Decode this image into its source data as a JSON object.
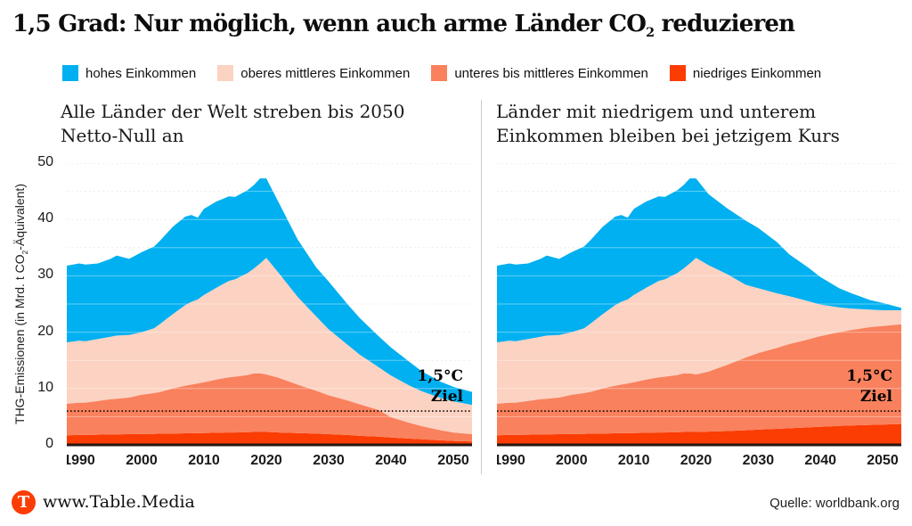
{
  "header": {
    "title_pre": "1,5 Grad: Nur möglich, wenn auch arme Länder CO",
    "title_sub": "2",
    "title_post": " reduzieren"
  },
  "legend": {
    "items": [
      {
        "label": "hohes Einkommen",
        "color": "#00b0f0"
      },
      {
        "label": "oberes mittleres Einkommen",
        "color": "#fcd2c2"
      },
      {
        "label": "unteres bis mittleres Einkommen",
        "color": "#f9815d"
      },
      {
        "label": "niedriges Einkommen",
        "color": "#fb3c03"
      }
    ]
  },
  "y_axis": {
    "label_pre": "THG-Emissionen (in Mrd. t CO",
    "label_sub": "2",
    "label_post": "-Äquivalent)",
    "ticks": [
      0,
      10,
      20,
      30,
      40,
      50
    ]
  },
  "footer": {
    "logo_letter": "T",
    "logo_color": "#fb3c03",
    "site": "www.Table.Media",
    "source": "Quelle: worldbank.org"
  },
  "chart_data": [
    {
      "panel": "left",
      "type": "area",
      "stacked": true,
      "title_line1": "Alle Länder der Welt streben bis 2050",
      "title_line2": "Netto-Null an",
      "ylabel": "THG-Emissionen (in Mrd. t CO₂-Äquivalent)",
      "ylim": [
        0,
        50
      ],
      "grid_step": 5,
      "x_range": [
        1988,
        2053
      ],
      "xticks": [
        1990,
        2000,
        2010,
        2020,
        2030,
        2040,
        2050
      ],
      "target_line": {
        "value": 6,
        "label_line1": "1,5°C",
        "label_line2": "Ziel"
      },
      "x": [
        1988,
        1990,
        1991,
        1993,
        1995,
        1996,
        1998,
        2000,
        2002,
        2003,
        2005,
        2007,
        2008,
        2009,
        2010,
        2012,
        2014,
        2015,
        2017,
        2018,
        2019,
        2020,
        2022,
        2025,
        2028,
        2030,
        2033,
        2035,
        2038,
        2040,
        2043,
        2045,
        2048,
        2050,
        2053
      ],
      "series": [
        {
          "name": "niedriges Einkommen",
          "color": "#fb3c03",
          "values": [
            1.7,
            1.75,
            1.75,
            1.8,
            1.85,
            1.85,
            1.9,
            1.95,
            1.95,
            2,
            2,
            2.05,
            2.1,
            2.1,
            2.1,
            2.15,
            2.2,
            2.2,
            2.25,
            2.3,
            2.3,
            2.3,
            2.2,
            2.1,
            2,
            1.9,
            1.75,
            1.6,
            1.45,
            1.3,
            1.1,
            1,
            0.8,
            0.7,
            0.6
          ]
        },
        {
          "name": "unteres bis mittleres Einkommen",
          "color": "#f9815d",
          "values": [
            5.6,
            5.75,
            5.75,
            6,
            6.25,
            6.35,
            6.5,
            6.95,
            7.25,
            7.4,
            8,
            8.45,
            8.6,
            8.8,
            9,
            9.45,
            9.8,
            9.9,
            10.15,
            10.4,
            10.4,
            10.2,
            9.7,
            8.6,
            7.6,
            6.9,
            6.15,
            5.6,
            4.75,
            3.6,
            2.8,
            2.3,
            1.8,
            1.5,
            1.3
          ]
        },
        {
          "name": "oberes mittleres Einkommen",
          "color": "#fcd2c2",
          "values": [
            10.9,
            11,
            10.9,
            11,
            11.1,
            11.2,
            11.1,
            11.1,
            11.5,
            12.1,
            13.2,
            14.3,
            14.7,
            14.9,
            15.5,
            16.3,
            17.1,
            17.3,
            18.1,
            18.6,
            19.5,
            20.7,
            18.6,
            15.6,
            13.2,
            11.7,
            9.9,
            8.8,
            7.6,
            7.4,
            6.6,
            6.2,
            5.7,
            5.5,
            5.2
          ]
        },
        {
          "name": "hohes Einkommen",
          "color": "#00b0f0",
          "values": [
            13.6,
            13.7,
            13.6,
            13.4,
            13.8,
            14.2,
            13.5,
            14.2,
            14.5,
            14.8,
            15.5,
            15.7,
            15.4,
            14.5,
            15.3,
            15.3,
            15,
            14.6,
            14.7,
            14.8,
            15.1,
            14.1,
            12.5,
            10.2,
            8.7,
            8.5,
            7.2,
            6.5,
            5.5,
            5,
            4.2,
            3.5,
            2.9,
            2.6,
            2.3
          ]
        }
      ]
    },
    {
      "panel": "right",
      "type": "area",
      "stacked": true,
      "title_line1": "Länder mit niedrigem und unterem",
      "title_line2": "Einkommen bleiben bei jetzigem Kurs",
      "ylabel": "THG-Emissionen (in Mrd. t CO₂-Äquivalent)",
      "ylim": [
        0,
        50
      ],
      "grid_step": 5,
      "x_range": [
        1988,
        2053
      ],
      "xticks": [
        1990,
        2000,
        2010,
        2020,
        2030,
        2040,
        2050
      ],
      "target_line": {
        "value": 6,
        "label_line1": "1,5°C",
        "label_line2": "Ziel"
      },
      "x": [
        1988,
        1990,
        1991,
        1993,
        1995,
        1996,
        1998,
        2000,
        2002,
        2003,
        2005,
        2007,
        2008,
        2009,
        2010,
        2012,
        2014,
        2015,
        2017,
        2018,
        2019,
        2020,
        2022,
        2025,
        2028,
        2030,
        2033,
        2035,
        2038,
        2040,
        2043,
        2045,
        2048,
        2050,
        2053
      ],
      "series": [
        {
          "name": "niedriges Einkommen",
          "color": "#fb3c03",
          "values": [
            1.7,
            1.75,
            1.75,
            1.8,
            1.85,
            1.85,
            1.9,
            1.95,
            1.95,
            2,
            2,
            2.05,
            2.1,
            2.1,
            2.1,
            2.15,
            2.2,
            2.2,
            2.25,
            2.3,
            2.3,
            2.3,
            2.35,
            2.45,
            2.6,
            2.7,
            2.85,
            2.95,
            3.1,
            3.2,
            3.35,
            3.45,
            3.55,
            3.6,
            3.7
          ]
        },
        {
          "name": "unteres bis mittleres Einkommen",
          "color": "#f9815d",
          "values": [
            5.6,
            5.75,
            5.75,
            6,
            6.25,
            6.35,
            6.5,
            6.95,
            7.25,
            7.4,
            8,
            8.45,
            8.6,
            8.8,
            9,
            9.45,
            9.8,
            9.9,
            10.15,
            10.4,
            10.4,
            10.2,
            10.65,
            11.75,
            12.9,
            13.6,
            14.35,
            14.95,
            15.6,
            16.1,
            16.65,
            16.95,
            17.35,
            17.5,
            17.7
          ]
        },
        {
          "name": "oberes mittleres Einkommen",
          "color": "#fcd2c2",
          "values": [
            10.9,
            11,
            10.9,
            11,
            11.1,
            11.2,
            11.1,
            11.1,
            11.5,
            12.1,
            13.2,
            14.3,
            14.7,
            14.9,
            15.5,
            16.3,
            17.1,
            17.3,
            18.1,
            18.6,
            19.5,
            20.7,
            18.9,
            16.1,
            12.9,
            11.5,
            9.7,
            8.5,
            6.8,
            5.6,
            4.4,
            3.8,
            3.1,
            2.8,
            2.5
          ]
        },
        {
          "name": "hohes Einkommen",
          "color": "#00b0f0",
          "values": [
            13.6,
            13.7,
            13.6,
            13.4,
            13.8,
            14.2,
            13.5,
            14.2,
            14.5,
            14.8,
            15.5,
            15.7,
            15.4,
            14.5,
            15.3,
            15.3,
            15,
            14.6,
            14.7,
            14.8,
            15.1,
            14.1,
            12.6,
            11.7,
            11.4,
            10.7,
            9.1,
            7.4,
            6,
            4.9,
            3.4,
            2.7,
            1.7,
            1.3,
            0.4
          ]
        }
      ]
    }
  ]
}
